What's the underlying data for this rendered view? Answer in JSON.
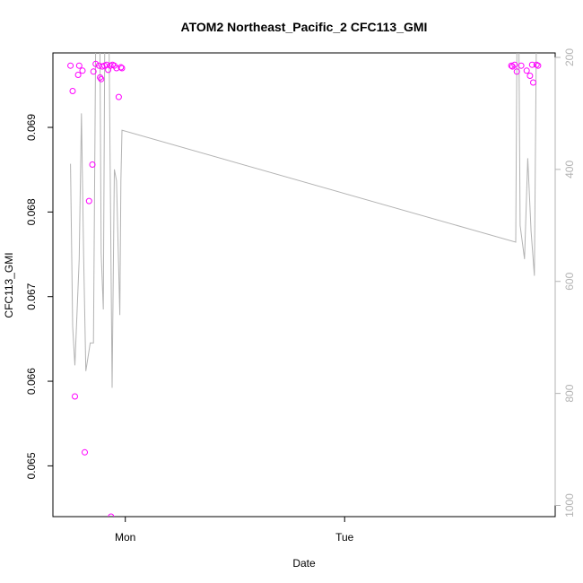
{
  "chart_data": {
    "type": "line+scatter",
    "title": "ATOM2 Northeast_Pacific_2 CFC113_GMI",
    "xlabel": "Date",
    "ylabel": "CFC113_GMI",
    "x_ticks": [
      "Mon",
      "Tue"
    ],
    "y_ticks_left": [
      "0.065",
      "0.066",
      "0.067",
      "0.068",
      "0.069"
    ],
    "y_ticks_right": [
      "200",
      "400",
      "600",
      "800",
      "1000"
    ],
    "x_tick_positions": [
      0,
      1
    ],
    "x_range": [
      -0.33,
      1.96
    ],
    "y_left_range": [
      0.0644,
      0.06988
    ],
    "y_right_range": [
      1020,
      192
    ],
    "colors": {
      "points": "#ff00ff",
      "line": "#b3b3b3",
      "right_axis": "#b3b3b3"
    },
    "series": [
      {
        "type": "scatter",
        "axis": "left",
        "points": [
          [
            -0.25,
            0.06973
          ],
          [
            -0.24,
            0.06943
          ],
          [
            -0.23,
            0.06582
          ],
          [
            -0.215,
            0.06962
          ],
          [
            -0.21,
            0.06973
          ],
          [
            -0.195,
            0.06967
          ],
          [
            -0.185,
            0.06516
          ],
          [
            -0.165,
            0.06813
          ],
          [
            -0.15,
            0.06856
          ],
          [
            -0.145,
            0.06966
          ],
          [
            -0.135,
            0.06975
          ],
          [
            -0.12,
            0.06973
          ],
          [
            -0.115,
            0.06959
          ],
          [
            -0.11,
            0.06957
          ],
          [
            -0.105,
            0.06972
          ],
          [
            -0.095,
            0.06973
          ],
          [
            -0.085,
            0.06974
          ],
          [
            -0.078,
            0.06968
          ],
          [
            -0.068,
            0.06973
          ],
          [
            -0.065,
            0.0644
          ],
          [
            -0.058,
            0.06974
          ],
          [
            -0.05,
            0.06973
          ],
          [
            -0.04,
            0.0697
          ],
          [
            -0.03,
            0.06936
          ],
          [
            -0.02,
            0.06971
          ],
          [
            -0.015,
            0.0697
          ],
          [
            1.76,
            0.06973
          ],
          [
            1.765,
            0.06972
          ],
          [
            1.775,
            0.06974
          ],
          [
            1.785,
            0.06966
          ],
          [
            1.805,
            0.06973
          ],
          [
            1.83,
            0.06967
          ],
          [
            1.845,
            0.06961
          ],
          [
            1.855,
            0.06974
          ],
          [
            1.86,
            0.06953
          ],
          [
            1.875,
            0.06974
          ],
          [
            1.882,
            0.06973
          ]
        ]
      },
      {
        "type": "line",
        "axis": "right",
        "points": [
          [
            -0.25,
            390
          ],
          [
            -0.24,
            680
          ],
          [
            -0.23,
            750
          ],
          [
            -0.21,
            560
          ],
          [
            -0.2,
            300
          ],
          [
            -0.19,
            550
          ],
          [
            -0.18,
            760
          ],
          [
            -0.16,
            710
          ],
          [
            -0.145,
            710
          ],
          [
            -0.13,
            -100
          ],
          [
            -0.12,
            -100
          ],
          [
            -0.11,
            550
          ],
          [
            -0.1,
            650
          ],
          [
            -0.09,
            -100
          ],
          [
            -0.08,
            -100
          ],
          [
            -0.06,
            790
          ],
          [
            -0.05,
            400
          ],
          [
            -0.04,
            420
          ],
          [
            -0.025,
            660
          ],
          [
            -0.02,
            420
          ],
          [
            -0.015,
            330
          ],
          [
            1.78,
            530
          ],
          [
            1.79,
            -100
          ],
          [
            1.8,
            500
          ],
          [
            1.82,
            560
          ],
          [
            1.835,
            380
          ],
          [
            1.85,
            510
          ],
          [
            1.865,
            590
          ],
          [
            1.88,
            -100
          ]
        ]
      }
    ]
  }
}
